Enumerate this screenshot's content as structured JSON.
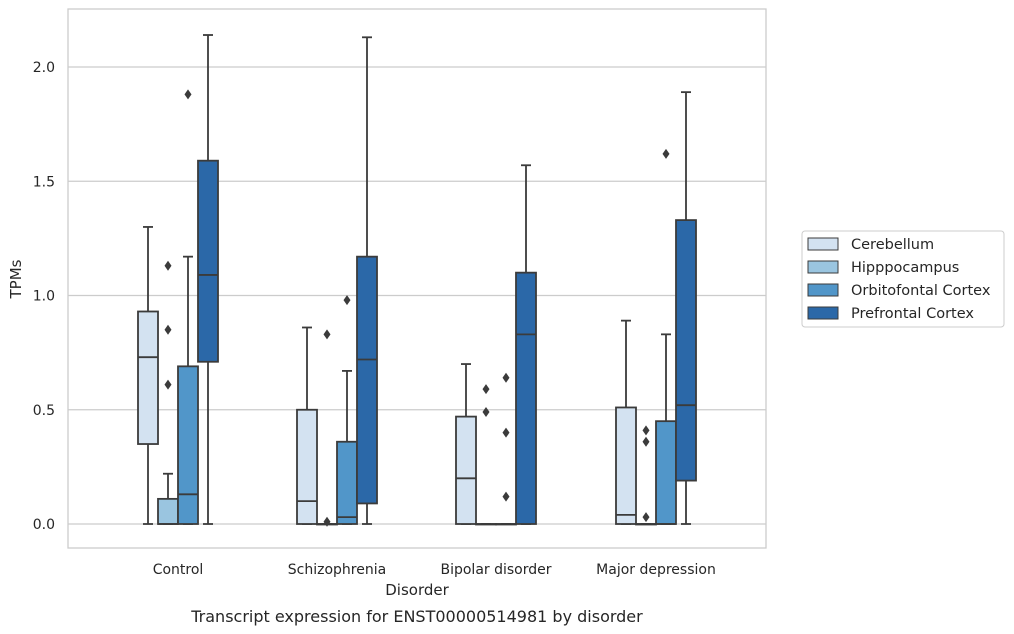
{
  "chart_data": {
    "type": "box",
    "xlabel": "Disorder",
    "ylabel": "TPMs",
    "caption": "Transcript expression for ENST00000514981 by disorder",
    "ylim": [
      -0.1,
      2.26
    ],
    "yticks": [
      "0.0",
      "0.5",
      "1.0",
      "1.5",
      "2.0"
    ],
    "ytick_values": [
      0.0,
      0.5,
      1.0,
      1.5,
      2.0
    ],
    "grid": true,
    "legend_placement": "right",
    "categories": [
      "Control",
      "Schizophrenia",
      "Bipolar disorder",
      "Major depression"
    ],
    "series": [
      {
        "name": "Cerebellum",
        "color": "#d3e2f1",
        "boxes": [
          {
            "whisker_low": 0.0,
            "q1": 0.35,
            "median": 0.73,
            "q3": 0.93,
            "whisker_high": 1.3,
            "outliers": []
          },
          {
            "whisker_low": 0.0,
            "q1": 0.0,
            "median": 0.1,
            "q3": 0.5,
            "whisker_high": 0.86,
            "outliers": []
          },
          {
            "whisker_low": 0.0,
            "q1": 0.0,
            "median": 0.2,
            "q3": 0.47,
            "whisker_high": 0.7,
            "outliers": []
          },
          {
            "whisker_low": 0.0,
            "q1": 0.0,
            "median": 0.04,
            "q3": 0.51,
            "whisker_high": 0.89,
            "outliers": []
          }
        ]
      },
      {
        "name": "Hipppocampus",
        "color": "#9ac5e0",
        "boxes": [
          {
            "whisker_low": 0.0,
            "q1": 0.0,
            "median": 0.0,
            "q3": 0.11,
            "whisker_high": 0.22,
            "outliers": [
              0.61,
              0.85,
              1.13
            ]
          },
          {
            "whisker_low": 0.0,
            "q1": 0.0,
            "median": 0.0,
            "q3": 0.0,
            "whisker_high": 0.0,
            "outliers": [
              0.01,
              0.83
            ]
          },
          {
            "whisker_low": 0.0,
            "q1": 0.0,
            "median": 0.0,
            "q3": 0.0,
            "whisker_high": 0.0,
            "outliers": [
              0.49,
              0.59
            ]
          },
          {
            "whisker_low": 0.0,
            "q1": 0.0,
            "median": 0.0,
            "q3": 0.0,
            "whisker_high": 0.0,
            "outliers": [
              0.03,
              0.36,
              0.41
            ]
          }
        ]
      },
      {
        "name": "Orbitofontal Cortex",
        "color": "#5196c9",
        "boxes": [
          {
            "whisker_low": 0.0,
            "q1": 0.0,
            "median": 0.13,
            "q3": 0.69,
            "whisker_high": 1.17,
            "outliers": [
              1.88
            ]
          },
          {
            "whisker_low": 0.0,
            "q1": 0.0,
            "median": 0.03,
            "q3": 0.36,
            "whisker_high": 0.67,
            "outliers": [
              0.98
            ]
          },
          {
            "whisker_low": 0.0,
            "q1": 0.0,
            "median": 0.0,
            "q3": 0.0,
            "whisker_high": 0.0,
            "outliers": [
              0.12,
              0.4,
              0.64
            ]
          },
          {
            "whisker_low": 0.0,
            "q1": 0.0,
            "median": 0.0,
            "q3": 0.45,
            "whisker_high": 0.83,
            "outliers": [
              1.62
            ]
          }
        ]
      },
      {
        "name": "Prefrontal Cortex",
        "color": "#2b68a8",
        "boxes": [
          {
            "whisker_low": 0.0,
            "q1": 0.71,
            "median": 1.09,
            "q3": 1.59,
            "whisker_high": 2.14,
            "outliers": []
          },
          {
            "whisker_low": 0.0,
            "q1": 0.09,
            "median": 0.72,
            "q3": 1.17,
            "whisker_high": 2.13,
            "outliers": []
          },
          {
            "whisker_low": 0.0,
            "q1": 0.0,
            "median": 0.83,
            "q3": 1.1,
            "whisker_high": 1.57,
            "outliers": []
          },
          {
            "whisker_low": 0.0,
            "q1": 0.19,
            "median": 0.52,
            "q3": 1.33,
            "whisker_high": 1.89,
            "outliers": []
          }
        ]
      }
    ]
  }
}
